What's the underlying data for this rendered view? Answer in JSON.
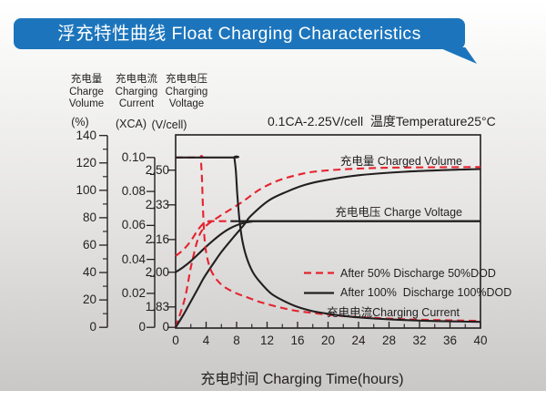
{
  "banner": {
    "title": "浮充特性曲线 Float Charging Characteristics"
  },
  "colors": {
    "banner_bg": "#1c75bc",
    "banner_text": "#ffffff",
    "red": "#e5232e",
    "black": "#231f20"
  },
  "axis_headers": {
    "volume": {
      "zh": "充电量",
      "en1": "Charge",
      "en2": "Volume",
      "unit": "(%)"
    },
    "current": {
      "zh": "充电电流",
      "en1": "Charging",
      "en2": "Current",
      "unit": "(XCA)"
    },
    "voltage": {
      "zh": "充电电压",
      "en1": "Charging",
      "en2": "Voltage",
      "unit": "(V/cell)"
    }
  },
  "chart_data": {
    "type": "line",
    "condition": "0.1CA-2.25V/cell  温度Temperature25°C",
    "x_axis": {
      "label": "充电时间 Charging Time(hours)",
      "tick_labels": [
        "0",
        "4",
        "8",
        "12",
        "16",
        "20",
        "24",
        "28",
        "32",
        "36",
        "40"
      ],
      "tick_values": [
        0,
        4,
        8,
        12,
        16,
        20,
        24,
        28,
        32,
        36,
        40
      ],
      "minor_step": 2,
      "range": [
        0,
        40
      ]
    },
    "y_axes": {
      "volume": {
        "unit": "(%)",
        "tick_labels": [
          "0",
          "20",
          "40",
          "60",
          "80",
          "100",
          "120",
          "140"
        ],
        "tick_values": [
          0,
          20,
          40,
          60,
          80,
          100,
          120,
          140
        ],
        "range": [
          0,
          140
        ]
      },
      "current": {
        "unit": "(XCA)",
        "tick_labels": [
          "0",
          "0.02",
          "0.04",
          "0.06",
          "0.08",
          "0.10"
        ],
        "tick_values": [
          0,
          0.02,
          0.04,
          0.06,
          0.08,
          0.1
        ],
        "range": [
          0,
          0.1
        ]
      },
      "voltage": {
        "unit": "(V/cell)",
        "tick_labels": [
          "0",
          "1.83",
          "2.00",
          "2.16",
          "2.33",
          "2.50"
        ],
        "tick_values": [
          0,
          1.83,
          2.0,
          2.16,
          2.33,
          2.5
        ],
        "range": [
          1.83,
          2.58
        ],
        "zero_break": true
      }
    },
    "inline_labels": {
      "charged_volume": "充电量 Charged Volume",
      "charge_voltage": "充电电压 Charge Voltage",
      "charging_current": "充电电流Charging Current"
    },
    "legend": [
      {
        "id": "50dod",
        "label": "After 50% Discharge 50%DOD",
        "color": "#e5232e",
        "dashed": true
      },
      {
        "id": "100dod",
        "label": "After 100%  Discharge 100%DOD",
        "color": "#231f20",
        "dashed": false
      }
    ],
    "series": [
      {
        "id": "charge-volume-50dod",
        "group": "volume",
        "dod": "50%",
        "color": "#e5232e",
        "dashed": true,
        "points": [
          [
            0,
            0
          ],
          [
            1.2,
            21
          ],
          [
            2,
            44
          ],
          [
            2.9,
            64
          ],
          [
            3.8,
            73
          ],
          [
            5.6,
            80.5
          ],
          [
            8.6,
            91
          ],
          [
            11,
            100.5
          ],
          [
            13.4,
            107
          ],
          [
            15.8,
            111
          ],
          [
            18.1,
            113.5
          ],
          [
            22,
            115.3
          ],
          [
            27,
            116.4
          ],
          [
            33,
            116.8
          ],
          [
            40,
            117
          ]
        ]
      },
      {
        "id": "charge-volume-100dod",
        "group": "volume",
        "dod": "100%",
        "color": "#231f20",
        "dashed": false,
        "points": [
          [
            0,
            0
          ],
          [
            1,
            9
          ],
          [
            2,
            19
          ],
          [
            3,
            29
          ],
          [
            3.8,
            37
          ],
          [
            5,
            47
          ],
          [
            6,
            55
          ],
          [
            7.4,
            64.5
          ],
          [
            9,
            75
          ],
          [
            9.8,
            81
          ],
          [
            12.2,
            92.5
          ],
          [
            14.6,
            99
          ],
          [
            17,
            104
          ],
          [
            19.3,
            107
          ],
          [
            24,
            111
          ],
          [
            30,
            113.5
          ],
          [
            35,
            114.7
          ],
          [
            40,
            115.5
          ]
        ]
      },
      {
        "id": "charge-voltage-50dod",
        "group": "voltage",
        "dod": "50%",
        "color": "#e5232e",
        "dashed": true,
        "points": [
          [
            0,
            2.08
          ],
          [
            0.7,
            2.1
          ],
          [
            1.5,
            2.13
          ],
          [
            2.2,
            2.165
          ],
          [
            2.8,
            2.2
          ],
          [
            3.3,
            2.225
          ],
          [
            3.8,
            2.243
          ],
          [
            4.3,
            2.249
          ],
          [
            4.6,
            2.25
          ],
          [
            7,
            2.25
          ]
        ]
      },
      {
        "id": "charge-voltage-setline",
        "group": "voltage",
        "dod": null,
        "color": "#231f20",
        "dashed": false,
        "points": [
          [
            7.2,
            2.25
          ],
          [
            40,
            2.25
          ]
        ]
      },
      {
        "id": "charge-voltage-100dod",
        "group": "voltage",
        "dod": "100%",
        "color": "#231f20",
        "dashed": false,
        "points": [
          [
            0,
            2.0
          ],
          [
            1,
            2.025
          ],
          [
            2,
            2.055
          ],
          [
            3,
            2.09
          ],
          [
            4,
            2.125
          ],
          [
            5,
            2.158
          ],
          [
            6,
            2.188
          ],
          [
            7,
            2.212
          ],
          [
            8,
            2.23
          ],
          [
            9,
            2.242
          ],
          [
            10,
            2.248
          ],
          [
            11,
            2.25
          ],
          [
            40,
            2.25
          ]
        ]
      },
      {
        "id": "charging-current-50dod",
        "group": "current",
        "dod": "50%",
        "color": "#e5232e",
        "dashed": true,
        "points": [
          [
            0,
            0.1
          ],
          [
            3.25,
            0.1
          ],
          [
            3.3,
            0.1
          ],
          [
            3.45,
            0.088
          ],
          [
            3.6,
            0.068
          ],
          [
            3.8,
            0.052
          ],
          [
            4.1,
            0.042
          ],
          [
            4.6,
            0.034
          ],
          [
            5.4,
            0.028
          ],
          [
            6.5,
            0.0235
          ],
          [
            8,
            0.02
          ],
          [
            9.5,
            0.0175
          ],
          [
            11,
            0.015
          ],
          [
            13,
            0.0125
          ],
          [
            15.5,
            0.01
          ],
          [
            18,
            0.0085
          ],
          [
            21,
            0.007
          ],
          [
            25,
            0.0058
          ],
          [
            30,
            0.0048
          ],
          [
            35,
            0.0042
          ],
          [
            40,
            0.0038
          ]
        ]
      },
      {
        "id": "charging-current-100dod",
        "group": "current",
        "dod": "100%",
        "color": "#231f20",
        "dashed": false,
        "points": [
          [
            0,
            0.1
          ],
          [
            7.65,
            0.1
          ],
          [
            7.7,
            0.1
          ],
          [
            7.9,
            0.092
          ],
          [
            8.1,
            0.078
          ],
          [
            8.4,
            0.062
          ],
          [
            8.8,
            0.05
          ],
          [
            9.4,
            0.04
          ],
          [
            10.2,
            0.032
          ],
          [
            11.2,
            0.026
          ],
          [
            12.5,
            0.02
          ],
          [
            14,
            0.016
          ],
          [
            16,
            0.012
          ],
          [
            18,
            0.0095
          ],
          [
            20,
            0.008
          ],
          [
            23,
            0.0062
          ],
          [
            26,
            0.0052
          ],
          [
            30,
            0.0043
          ],
          [
            34,
            0.0037
          ],
          [
            40,
            0.0032
          ]
        ]
      }
    ]
  }
}
